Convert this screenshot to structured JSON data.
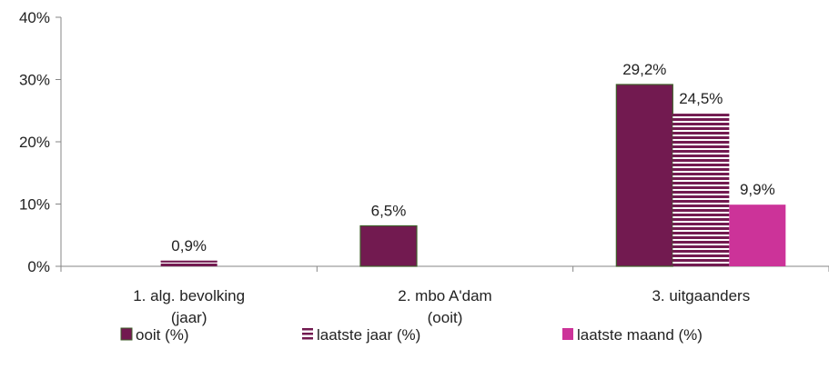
{
  "chart_data": {
    "type": "bar",
    "categories": [
      [
        "1. alg. bevolking",
        "(jaar)"
      ],
      [
        "2. mbo A'dam",
        "(ooit)"
      ],
      [
        "3. uitgaanders"
      ]
    ],
    "y_tick_labels": [
      "0%",
      "10%",
      "20%",
      "30%",
      "40%"
    ],
    "ylim": [
      0,
      40
    ],
    "y_ticks": [
      0,
      10,
      20,
      30,
      40
    ],
    "grid": false,
    "legend_position": "bottom",
    "series": [
      {
        "name": "ooit (%)",
        "values": [
          null,
          6.5,
          29.2
        ],
        "labels": [
          "",
          "6,5%",
          "29,2%"
        ],
        "color": "#721a50",
        "pattern": "solid"
      },
      {
        "name": "laatste jaar (%)",
        "values": [
          0.9,
          null,
          24.5
        ],
        "labels": [
          "0,9%",
          "",
          "24,5%"
        ],
        "color": "#721a50",
        "pattern": "horizontal-stripes"
      },
      {
        "name": "laatste maand (%)",
        "values": [
          null,
          null,
          9.9
        ],
        "labels": [
          "",
          "",
          "9,9%"
        ],
        "color": "#cc3399",
        "pattern": "solid"
      }
    ]
  }
}
